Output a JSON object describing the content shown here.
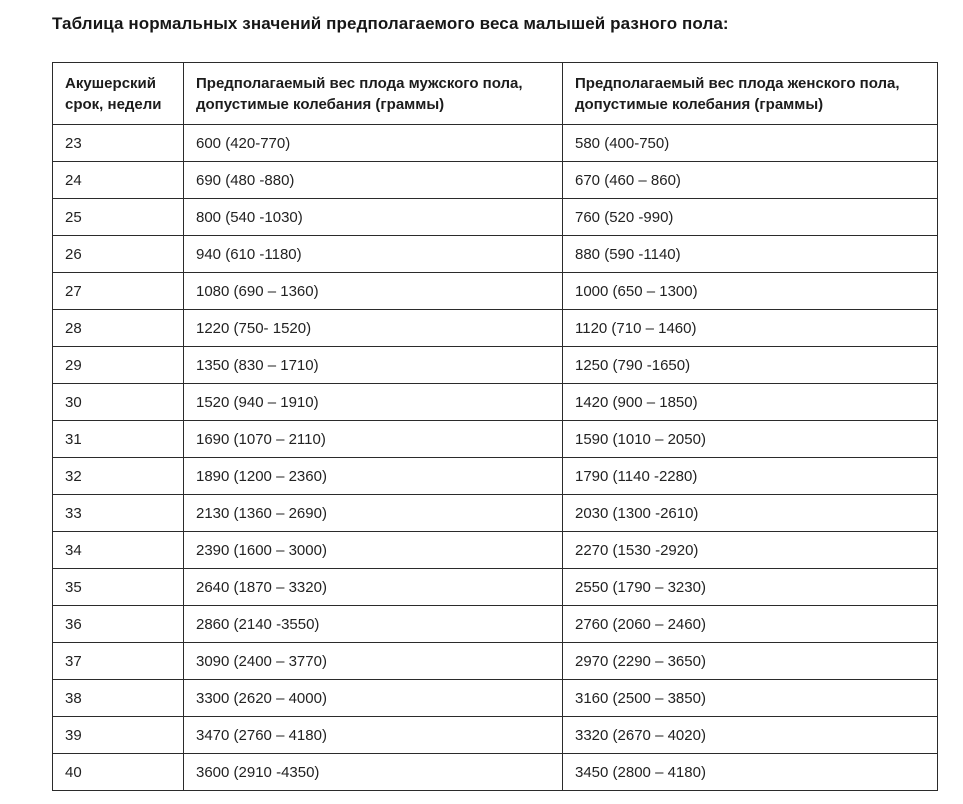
{
  "page": {
    "title": "Таблица нормальных значений предполагаемого веса малышей разного пола:"
  },
  "table": {
    "headers": {
      "week": "Акушерский срок, недели",
      "male": "Предполагаемый вес плода мужского пола, допустимые колебания (граммы)",
      "female": "Предполагаемый вес плода женского пола, допустимые колебания (граммы)"
    },
    "rows": [
      {
        "week": "23",
        "male": "600 (420-770)",
        "female": "580 (400-750)"
      },
      {
        "week": "24",
        "male": "690 (480 -880)",
        "female": "670 (460 – 860)"
      },
      {
        "week": "25",
        "male": "800 (540 -1030)",
        "female": "760 (520 -990)"
      },
      {
        "week": "26",
        "male": "940 (610 -1180)",
        "female": "880 (590 -1140)"
      },
      {
        "week": "27",
        "male": "1080 (690 – 1360)",
        "female": "1000 (650 – 1300)"
      },
      {
        "week": "28",
        "male": "1220 (750- 1520)",
        "female": "1120 (710 – 1460)"
      },
      {
        "week": "29",
        "male": "1350 (830 – 1710)",
        "female": "1250 (790 -1650)"
      },
      {
        "week": "30",
        "male": "1520 (940 – 1910)",
        "female": "1420 (900 – 1850)"
      },
      {
        "week": "31",
        "male": "1690 (1070 – 2110)",
        "female": "1590 (1010 – 2050)"
      },
      {
        "week": "32",
        "male": "1890 (1200 – 2360)",
        "female": "1790 (1140 -2280)"
      },
      {
        "week": "33",
        "male": "2130 (1360 – 2690)",
        "female": "2030 (1300 -2610)"
      },
      {
        "week": "34",
        "male": "2390 (1600 – 3000)",
        "female": "2270 (1530 -2920)"
      },
      {
        "week": "35",
        "male": "2640 (1870 – 3320)",
        "female": "2550 (1790 – 3230)"
      },
      {
        "week": "36",
        "male": "2860 (2140 -3550)",
        "female": "2760 (2060 – 2460)"
      },
      {
        "week": "37",
        "male": "3090 (2400 – 3770)",
        "female": "2970 (2290 – 3650)"
      },
      {
        "week": "38",
        "male": "3300 (2620 – 4000)",
        "female": "3160 (2500 – 3850)"
      },
      {
        "week": "39",
        "male": "3470 (2760 – 4180)",
        "female": "3320 (2670 – 4020)"
      },
      {
        "week": "40",
        "male": "3600 (2910 -4350)",
        "female": "3450 (2800 – 4180)"
      }
    ]
  }
}
